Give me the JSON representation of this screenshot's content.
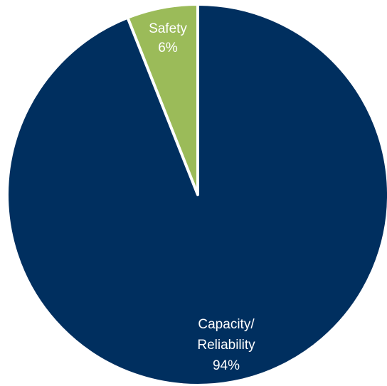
{
  "chart_data": {
    "type": "pie",
    "title": "",
    "legend": "none",
    "slices": [
      {
        "name_lines": [
          "Safety"
        ],
        "value": 6,
        "value_label": "6%",
        "color": "#9bbb59"
      },
      {
        "name_lines": [
          "Capacity/",
          "Reliability"
        ],
        "value": 94,
        "value_label": "94%",
        "color": "#002f5f"
      }
    ],
    "slice_border_color": "#ffffff"
  }
}
